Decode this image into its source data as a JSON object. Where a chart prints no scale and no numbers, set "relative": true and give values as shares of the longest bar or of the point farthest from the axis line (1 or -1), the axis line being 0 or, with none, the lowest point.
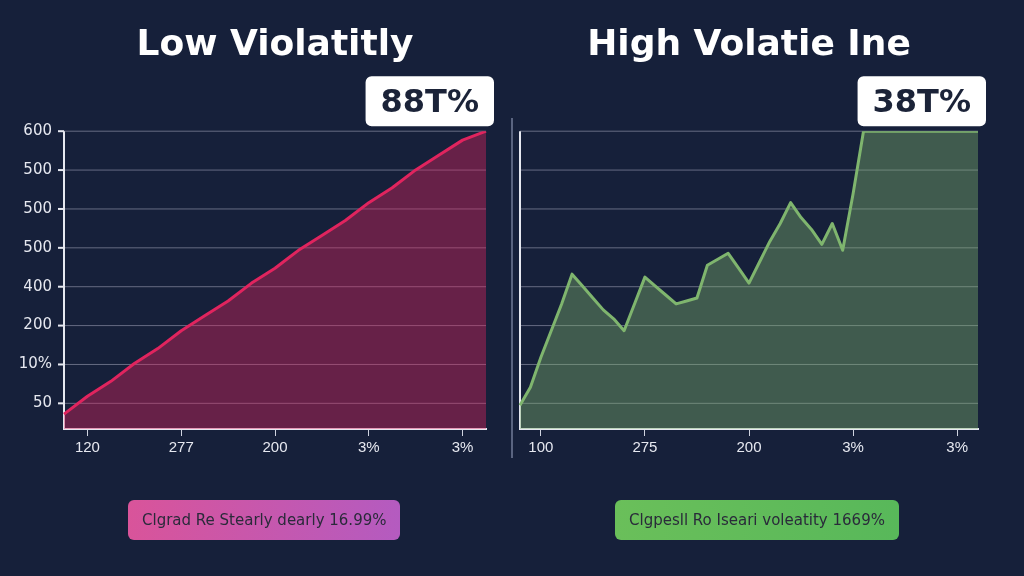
{
  "chart_data": [
    {
      "type": "area",
      "title": "Low Violatitly",
      "relative": true,
      "categories": [
        null,
        "120",
        null,
        null,
        null,
        "277",
        null,
        null,
        null,
        "200",
        null,
        null,
        null,
        "3%",
        null,
        null,
        null,
        "3%",
        null
      ],
      "series": [
        {
          "color": "#e0245e",
          "values": [
            0.05,
            0.11,
            0.16,
            0.22,
            0.27,
            0.33,
            0.38,
            0.43,
            0.49,
            0.54,
            0.6,
            0.65,
            0.7,
            0.76,
            0.81,
            0.87,
            0.92,
            0.97,
            1
          ]
        }
      ],
      "grid": "y",
      "legend": false,
      "marker": "none",
      "annotations": [
        "88T%",
        "50",
        "10%",
        "200",
        "400",
        "500",
        "500",
        "500",
        "600",
        "Clgrad Re Stearly dearly  16.99%"
      ]
    },
    {
      "type": "area",
      "title": "High Volatie Ine",
      "relative": true,
      "categories": [
        null,
        null,
        "100",
        null,
        null,
        null,
        null,
        null,
        null,
        null,
        null,
        null,
        "275",
        null,
        null,
        null,
        null,
        null,
        null,
        null,
        null,
        null,
        "200",
        null,
        null,
        null,
        null,
        null,
        null,
        null,
        null,
        null,
        "3%",
        null,
        null,
        null,
        null,
        null,
        null,
        null,
        null,
        null,
        "3%",
        null,
        null
      ],
      "series": [
        {
          "color": "#7fb56e",
          "values": [
            0.08,
            0.14,
            0.24,
            0.33,
            0.42,
            0.52,
            0.48,
            0.44,
            0.4,
            0.37,
            0.33,
            0.42,
            0.51,
            0.48,
            0.45,
            0.42,
            0.43,
            0.44,
            0.55,
            0.57,
            0.59,
            0.54,
            0.49,
            0.56,
            0.63,
            0.69,
            0.76,
            0.71,
            0.67,
            0.62,
            0.69,
            0.6,
            0.79,
            1,
            1,
            1,
            1,
            1,
            1,
            1,
            1,
            1,
            1,
            1,
            1
          ]
        }
      ],
      "grid": "y",
      "legend": false,
      "marker": "none",
      "annotations": [
        "38T%",
        "Clgpesll Ro  Iseari voleatity  1669%"
      ]
    }
  ]
}
